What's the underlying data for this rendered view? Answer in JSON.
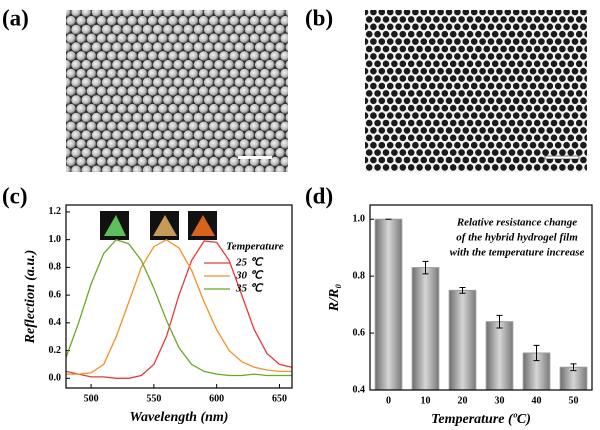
{
  "panel_labels": [
    "(a)",
    "(b)",
    "(c)",
    "(d)"
  ],
  "chart_data": [
    {
      "type": "line",
      "x_label": "Wavelength (nm)",
      "y_label": "Reflection (a.u.)",
      "x": [
        480,
        490,
        500,
        510,
        520,
        530,
        540,
        550,
        560,
        570,
        580,
        590,
        600,
        610,
        620,
        630,
        640,
        650,
        660
      ],
      "series": [
        {
          "name": "25 ℃",
          "color": "#e8393a",
          "values": [
            0.05,
            0.03,
            0.01,
            0.01,
            0.0,
            0.0,
            0.02,
            0.1,
            0.3,
            0.6,
            0.85,
            0.99,
            0.98,
            0.85,
            0.6,
            0.35,
            0.18,
            0.1,
            0.08
          ]
        },
        {
          "name": "30 ℃",
          "color": "#f0922a",
          "values": [
            0.03,
            0.03,
            0.04,
            0.1,
            0.3,
            0.55,
            0.8,
            0.95,
            1.0,
            0.94,
            0.78,
            0.55,
            0.35,
            0.2,
            0.12,
            0.08,
            0.06,
            0.05,
            0.05
          ]
        },
        {
          "name": "35 ℃",
          "color": "#6aa823",
          "values": [
            0.15,
            0.4,
            0.68,
            0.9,
            1.0,
            0.97,
            0.85,
            0.65,
            0.42,
            0.22,
            0.1,
            0.05,
            0.03,
            0.02,
            0.02,
            0.03,
            0.02,
            0.02,
            0.02
          ]
        }
      ],
      "legend_title": "Temperature",
      "legend": "upper right",
      "xlim": [
        480,
        660
      ],
      "xticks": [
        500,
        550,
        600,
        650
      ],
      "ylim": [
        -0.07,
        1.25
      ],
      "yticks": [
        {
          "value": 0,
          "label": "0.0"
        },
        0.2,
        0.4,
        0.6,
        0.8,
        {
          "value": 1,
          "label": "1.0"
        },
        1.2
      ]
    },
    {
      "type": "bar",
      "x_label": "Temperature (ºC)",
      "y_label": "R/R₀",
      "categories": [
        "0",
        "10",
        "20",
        "30",
        "40",
        "50"
      ],
      "values": [
        1.0,
        0.83,
        0.75,
        0.64,
        0.53,
        0.48
      ],
      "errors": [
        0,
        0.022,
        0.01,
        0.022,
        0.027,
        0.012
      ],
      "color": "#9a9a9a",
      "annotation": [
        "Relative resistance change",
        "of the hybrid hydrogel film",
        "with the temperature increase"
      ],
      "ylim": [
        0.4,
        1.05
      ],
      "yticks": [
        0.4,
        0.6,
        0.8,
        {
          "value": 1,
          "label": "1.0"
        }
      ]
    }
  ]
}
